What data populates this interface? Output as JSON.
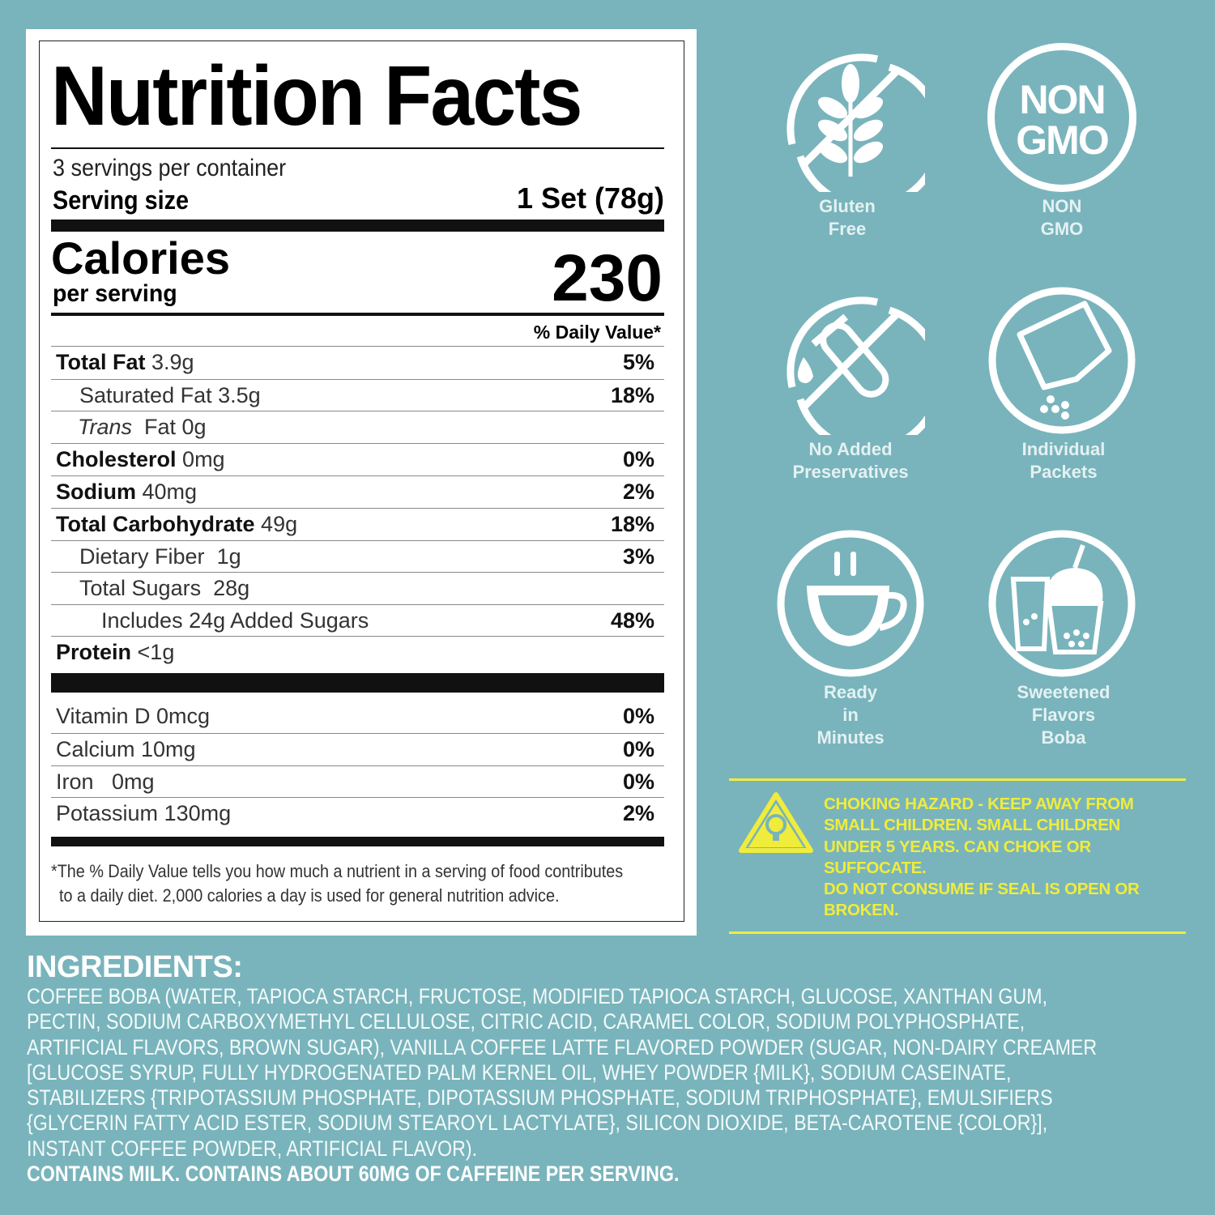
{
  "nutrition": {
    "title": "Nutrition Facts",
    "servings": "3 servings per container",
    "serving_size_label": "Serving size",
    "serving_size_value": "1 Set (78g)",
    "calories_label": "Calories",
    "per_serving": "per serving",
    "calories_value": "230",
    "dv_header": "% Daily Value*",
    "rows": [
      {
        "name": "Total Fat",
        "amount": "3.9g",
        "dv": "5%"
      },
      {
        "name": "Saturated Fat",
        "amount": "3.5g",
        "dv": "18%"
      },
      {
        "name": "Trans",
        "amount": "Fat 0g",
        "dv": ""
      },
      {
        "name": "Cholesterol",
        "amount": "0mg",
        "dv": "0%"
      },
      {
        "name": "Sodium",
        "amount": "40mg",
        "dv": "2%"
      },
      {
        "name": "Total Carbohydrate",
        "amount": "49g",
        "dv": "18%"
      },
      {
        "name": "Dietary Fiber",
        "amount": "1g",
        "dv": "3%"
      },
      {
        "name": "Total Sugars",
        "amount": "28g",
        "dv": ""
      },
      {
        "name": "Includes 24g Added Sugars",
        "amount": "",
        "dv": "48%"
      },
      {
        "name": "Protein",
        "amount": "<1g",
        "dv": ""
      }
    ],
    "vitamins": [
      {
        "name": "Vitamin D 0mcg",
        "dv": "0%"
      },
      {
        "name": "Calcium 10mg",
        "dv": "0%"
      },
      {
        "name": "Iron   0mg",
        "dv": "0%"
      },
      {
        "name": "Potassium 130mg",
        "dv": "2%"
      }
    ],
    "footnote_1": "*The % Daily Value tells you how much a nutrient in a serving of food contributes",
    "footnote_2": "to a daily diet. 2,000 calories a day is used for general nutrition advice."
  },
  "badges": [
    {
      "icon": "wheat-crossed-icon",
      "line1": "Gluten",
      "line2": "Free",
      "line3": ""
    },
    {
      "icon": "non-gmo-icon",
      "text1": "NON",
      "text2": "GMO",
      "line1": "NON",
      "line2": "GMO",
      "line3": ""
    },
    {
      "icon": "test-tube-crossed-icon",
      "line1": "No Added",
      "line2": "Preservatives",
      "line3": ""
    },
    {
      "icon": "packet-icon",
      "line1": "Individual",
      "line2": "Packets",
      "line3": ""
    },
    {
      "icon": "coffee-cup-icon",
      "line1": "Ready",
      "line2": "in",
      "line3": "Minutes"
    },
    {
      "icon": "boba-drink-icon",
      "line1": "Sweetened",
      "line2": "Flavors",
      "line3": "Boba"
    }
  ],
  "warning": {
    "icon": "warning-triangle-icon",
    "lines": [
      "CHOKING HAZARD - KEEP AWAY FROM",
      "SMALL CHILDREN. SMALL CHILDREN",
      "UNDER 5 YEARS. CAN CHOKE OR",
      "SUFFOCATE.",
      "DO NOT CONSUME IF SEAL IS OPEN OR",
      "BROKEN."
    ]
  },
  "ingredients": {
    "title": "INGREDIENTS:",
    "lines": [
      "COFFEE BOBA (WATER, TAPIOCA STARCH, FRUCTOSE, MODIFIED TAPIOCA STARCH, GLUCOSE, XANTHAN GUM,",
      "PECTIN, SODIUM CARBOXYMETHYL CELLULOSE, CITRIC ACID, CARAMEL COLOR, SODIUM POLYPHOSPHATE,",
      "ARTIFICIAL FLAVORS, BROWN SUGAR), VANILLA COFFEE LATTE FLAVORED POWDER (SUGAR, NON-DAIRY CREAMER",
      "[GLUCOSE SYRUP, FULLY HYDROGENATED PALM KERNEL OIL, WHEY POWDER {MILK}, SODIUM CASEINATE,",
      "STABILIZERS {TRIPOTASSIUM PHOSPHATE, DIPOTASSIUM PHOSPHATE, SODIUM TRIPHOSPHATE}, EMULSIFIERS",
      "{GLYCERIN FATTY ACID ESTER, SODIUM STEAROYL LACTYLATE}, SILICON DIOXIDE, BETA-CAROTENE {COLOR}],",
      "INSTANT COFFEE POWDER, ARTIFICIAL FLAVOR)."
    ],
    "contains": "CONTAINS MILK. CONTAINS ABOUT 60MG OF CAFFEINE PER SERVING."
  },
  "colors": {
    "background": "#79b4bc",
    "warning": "#f0ec3c",
    "label_text": "#e4f1f2"
  }
}
